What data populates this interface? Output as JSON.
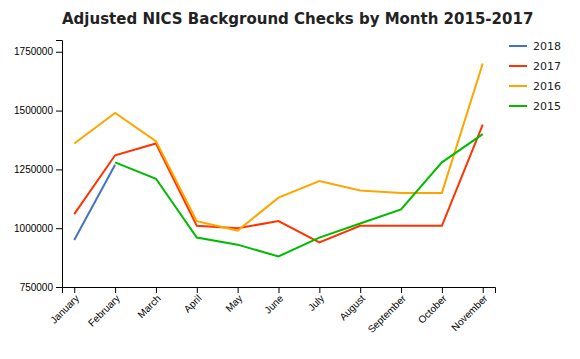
{
  "chart_data": {
    "type": "line",
    "title": "Adjusted NICS Background Checks by Month 2015-2017",
    "categories": [
      "January",
      "February",
      "March",
      "April",
      "May",
      "June",
      "July",
      "August",
      "September",
      "October",
      "November"
    ],
    "series": [
      {
        "name": "2018",
        "color": "#4472c4",
        "values": [
          950000,
          1270000,
          null,
          null,
          null,
          null,
          null,
          null,
          null,
          null,
          null
        ]
      },
      {
        "name": "2017",
        "color": "#ff3300",
        "values": [
          1060000,
          1310000,
          1360000,
          1010000,
          1000000,
          1030000,
          940000,
          1010000,
          1010000,
          1010000,
          1440000
        ]
      },
      {
        "name": "2016",
        "color": "#ffa500",
        "values": [
          1360000,
          1490000,
          1370000,
          1030000,
          990000,
          1130000,
          1200000,
          1160000,
          1150000,
          1150000,
          1700000
        ]
      },
      {
        "name": "2015",
        "color": "#00bb00",
        "values": [
          null,
          1280000,
          1210000,
          960000,
          930000,
          880000,
          960000,
          1020000,
          1080000,
          1280000,
          1400000
        ]
      }
    ],
    "ylim": [
      750000,
      1800000
    ],
    "yticks": [
      750000,
      1000000,
      1250000,
      1500000,
      1750000
    ],
    "grid": false,
    "legend": "right"
  }
}
